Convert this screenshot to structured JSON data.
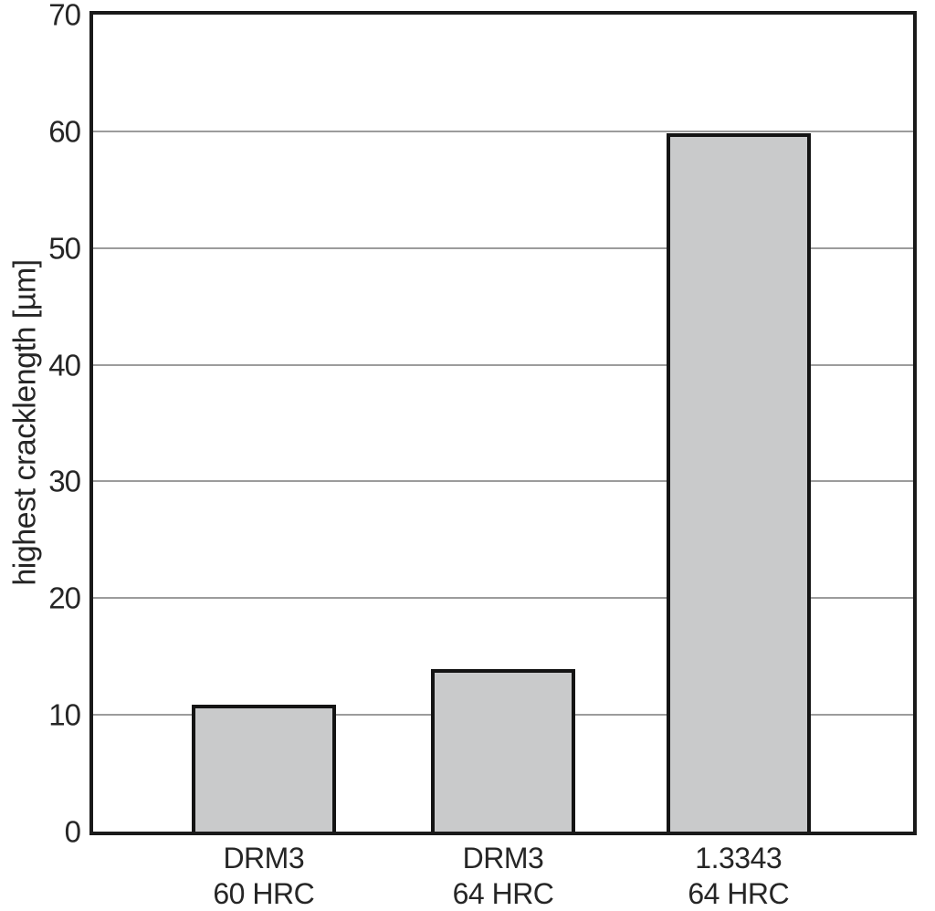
{
  "chart_data": {
    "type": "bar",
    "title": "",
    "xlabel": "",
    "ylabel": "highest cracklength [µm]",
    "ylim": [
      0,
      70
    ],
    "yticks": [
      0,
      10,
      20,
      30,
      40,
      50,
      60,
      70
    ],
    "grid": true,
    "legend": false,
    "categories": [
      "DRM3\n60 HRC",
      "DRM3\n64 HRC",
      "1.3343\n64 HRC"
    ],
    "values": [
      10.9,
      13.9,
      59.8
    ],
    "bar_fill": "#c9cacb",
    "bar_border": "#141414",
    "grid_color": "#9c9c9c",
    "axis_color": "#1a1a1a",
    "text_color": "#262626"
  }
}
